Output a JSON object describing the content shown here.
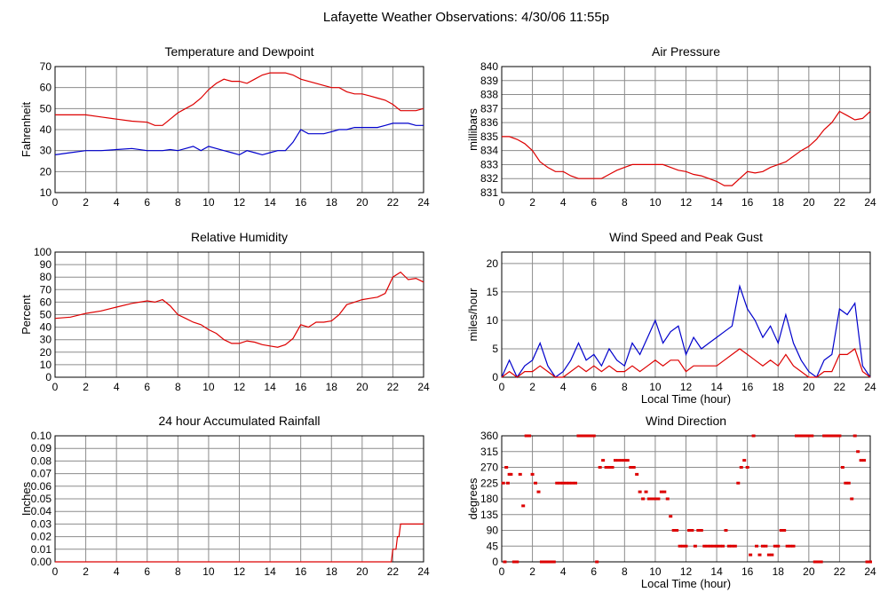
{
  "page": {
    "title": "Lafayette Weather Observations: 4/30/06 11:55p"
  },
  "colors": {
    "red": "#dd0000",
    "blue": "#0000cc",
    "grid": "#8c8c8c",
    "frame": "#000000"
  },
  "chart_data": [
    {
      "id": "temp",
      "type": "line",
      "title": "Temperature and Dewpoint",
      "ylabel": "Fahrenheit",
      "xlabel": "",
      "xlim": [
        0,
        24
      ],
      "ylim": [
        10,
        70
      ],
      "xticks": [
        0,
        2,
        4,
        6,
        8,
        10,
        12,
        14,
        16,
        18,
        20,
        22,
        24
      ],
      "yticks": [
        10,
        20,
        30,
        40,
        50,
        60,
        70
      ],
      "series": [
        {
          "color": "red",
          "x": [
            0,
            1,
            2,
            3,
            4,
            5,
            6,
            6.5,
            7,
            7.5,
            8,
            8.5,
            9,
            9.5,
            10,
            10.5,
            11,
            11.5,
            12,
            12.5,
            13,
            13.5,
            14,
            14.5,
            15,
            15.5,
            16,
            16.5,
            17,
            17.5,
            18,
            18.5,
            19,
            19.5,
            20,
            20.5,
            21,
            21.5,
            22,
            22.5,
            23,
            23.5,
            24
          ],
          "y": [
            47,
            47,
            47,
            46,
            45,
            44,
            43.5,
            42,
            42,
            45,
            48,
            50,
            52,
            55,
            59,
            62,
            64,
            63,
            63,
            62,
            64,
            66,
            67,
            67,
            67,
            66,
            64,
            63,
            62,
            61,
            60,
            60,
            58,
            57,
            57,
            56,
            55,
            54,
            52,
            49,
            49,
            49,
            50
          ]
        },
        {
          "color": "blue",
          "x": [
            0,
            1,
            2,
            3,
            4,
            5,
            6,
            6.5,
            7,
            7.5,
            8,
            8.5,
            9,
            9.5,
            10,
            10.5,
            11,
            11.5,
            12,
            12.5,
            13,
            13.5,
            14,
            14.5,
            15,
            15.5,
            16,
            16.5,
            17,
            17.5,
            18,
            18.5,
            19,
            19.5,
            20,
            20.5,
            21,
            21.5,
            22,
            22.5,
            23,
            23.5,
            24
          ],
          "y": [
            28,
            29,
            30,
            30,
            30.5,
            31,
            30,
            30,
            30,
            30.5,
            30,
            31,
            32,
            30,
            32,
            31,
            30,
            29,
            28,
            30,
            29,
            28,
            29,
            30,
            30,
            34,
            40,
            38,
            38,
            38,
            39,
            40,
            40,
            41,
            41,
            41,
            41,
            42,
            43,
            43,
            43,
            42,
            42
          ]
        }
      ]
    },
    {
      "id": "pressure",
      "type": "line",
      "title": "Air Pressure",
      "ylabel": "millibars",
      "xlabel": "",
      "xlim": [
        0,
        24
      ],
      "ylim": [
        831,
        840
      ],
      "xticks": [
        0,
        2,
        4,
        6,
        8,
        10,
        12,
        14,
        16,
        18,
        20,
        22,
        24
      ],
      "yticks": [
        831,
        832,
        833,
        834,
        835,
        836,
        837,
        838,
        839,
        840
      ],
      "series": [
        {
          "color": "red",
          "x": [
            0,
            0.5,
            1,
            1.5,
            2,
            2.5,
            3,
            3.5,
            4,
            4.5,
            5,
            5.5,
            6,
            6.5,
            7,
            7.5,
            8,
            8.5,
            9,
            9.5,
            10,
            10.5,
            11,
            11.5,
            12,
            12.5,
            13,
            13.5,
            14,
            14.5,
            15,
            15.5,
            16,
            16.5,
            17,
            17.5,
            18,
            18.5,
            19,
            19.5,
            20,
            20.5,
            21,
            21.5,
            22,
            22.5,
            23,
            23.5,
            24
          ],
          "y": [
            835,
            835,
            834.8,
            834.5,
            834,
            833.2,
            832.8,
            832.5,
            832.5,
            832.2,
            832,
            832,
            832,
            832,
            832.3,
            832.6,
            832.8,
            833,
            833,
            833,
            833,
            833,
            832.8,
            832.6,
            832.5,
            832.3,
            832.2,
            832,
            831.8,
            831.5,
            831.5,
            832,
            832.5,
            832.4,
            832.5,
            832.8,
            833,
            833.2,
            833.6,
            834,
            834.3,
            834.8,
            835.5,
            836,
            836.8,
            836.5,
            836.2,
            836.3,
            836.8
          ]
        }
      ]
    },
    {
      "id": "humidity",
      "type": "line",
      "title": "Relative Humidity",
      "ylabel": "Percent",
      "xlabel": "",
      "xlim": [
        0,
        24
      ],
      "ylim": [
        0,
        100
      ],
      "xticks": [
        0,
        2,
        4,
        6,
        8,
        10,
        12,
        14,
        16,
        18,
        20,
        22,
        24
      ],
      "yticks": [
        0,
        10,
        20,
        30,
        40,
        50,
        60,
        70,
        80,
        90,
        100
      ],
      "series": [
        {
          "color": "red",
          "x": [
            0,
            1,
            2,
            3,
            4,
            5,
            6,
            6.5,
            7,
            7.5,
            8,
            8.5,
            9,
            9.5,
            10,
            10.5,
            11,
            11.5,
            12,
            12.5,
            13,
            13.5,
            14,
            14.5,
            15,
            15.5,
            16,
            16.5,
            17,
            17.5,
            18,
            18.5,
            19,
            19.5,
            20,
            20.5,
            21,
            21.5,
            22,
            22.5,
            23,
            23.5,
            24
          ],
          "y": [
            47,
            48,
            51,
            53,
            56,
            59,
            61,
            60,
            62,
            57,
            50,
            47,
            44,
            42,
            38,
            35,
            30,
            27,
            27,
            29,
            28,
            26,
            25,
            24,
            26,
            31,
            42,
            40,
            44,
            44,
            45,
            50,
            58,
            60,
            62,
            63,
            64,
            67,
            80,
            84,
            78,
            79,
            76
          ]
        }
      ]
    },
    {
      "id": "wind",
      "type": "line",
      "title": "Wind Speed and Peak Gust",
      "ylabel": "miles/hour",
      "xlabel": "Local Time (hour)",
      "xlim": [
        0,
        24
      ],
      "ylim": [
        0,
        22
      ],
      "xticks": [
        0,
        2,
        4,
        6,
        8,
        10,
        12,
        14,
        16,
        18,
        20,
        22,
        24
      ],
      "yticks": [
        0,
        5,
        10,
        15,
        20
      ],
      "series": [
        {
          "color": "blue",
          "x": [
            0,
            0.5,
            1,
            1.5,
            2,
            2.5,
            3,
            3.5,
            4,
            4.5,
            5,
            5.5,
            6,
            6.5,
            7,
            7.5,
            8,
            8.5,
            9,
            9.5,
            10,
            10.5,
            11,
            11.5,
            12,
            12.5,
            13,
            13.5,
            14,
            14.5,
            15,
            15.5,
            16,
            16.5,
            17,
            17.5,
            18,
            18.5,
            19,
            19.5,
            20,
            20.5,
            21,
            21.5,
            22,
            22.5,
            23,
            23.5,
            24
          ],
          "y": [
            0,
            3,
            0,
            2,
            3,
            6,
            2,
            0,
            1,
            3,
            6,
            3,
            4,
            2,
            5,
            3,
            2,
            6,
            4,
            7,
            10,
            6,
            8,
            9,
            4,
            7,
            5,
            6,
            7,
            8,
            9,
            16,
            12,
            10,
            7,
            9,
            6,
            11,
            6,
            3,
            1,
            0,
            3,
            4,
            12,
            11,
            13,
            2,
            0
          ]
        },
        {
          "color": "red",
          "x": [
            0,
            0.5,
            1,
            1.5,
            2,
            2.5,
            3,
            3.5,
            4,
            4.5,
            5,
            5.5,
            6,
            6.5,
            7,
            7.5,
            8,
            8.5,
            9,
            9.5,
            10,
            10.5,
            11,
            11.5,
            12,
            12.5,
            13,
            13.5,
            14,
            14.5,
            15,
            15.5,
            16,
            16.5,
            17,
            17.5,
            18,
            18.5,
            19,
            19.5,
            20,
            20.5,
            21,
            21.5,
            22,
            22.5,
            23,
            23.5,
            24
          ],
          "y": [
            0,
            1,
            0,
            1,
            1,
            2,
            1,
            0,
            0,
            1,
            2,
            1,
            2,
            1,
            2,
            1,
            1,
            2,
            1,
            2,
            3,
            2,
            3,
            3,
            1,
            2,
            2,
            2,
            2,
            3,
            4,
            5,
            4,
            3,
            2,
            3,
            2,
            4,
            2,
            1,
            0,
            0,
            1,
            1,
            4,
            4,
            5,
            1,
            0
          ]
        }
      ]
    },
    {
      "id": "rain",
      "type": "line",
      "title": "24 hour Accumulated Rainfall",
      "ylabel": "Inches",
      "xlabel": "",
      "xlim": [
        0,
        24
      ],
      "ylim": [
        0,
        0.1
      ],
      "xticks": [
        0,
        2,
        4,
        6,
        8,
        10,
        12,
        14,
        16,
        18,
        20,
        22,
        24
      ],
      "yticks": [
        "0.00",
        "0.01",
        "0.02",
        "0.03",
        "0.04",
        "0.05",
        "0.06",
        "0.07",
        "0.08",
        "0.09",
        "0.10"
      ],
      "series": [
        {
          "color": "red",
          "x": [
            0,
            21.9,
            22,
            22.2,
            22.3,
            22.4,
            22.5,
            24
          ],
          "y": [
            0,
            0,
            0.01,
            0.01,
            0.02,
            0.02,
            0.03,
            0.03
          ]
        }
      ]
    },
    {
      "id": "direction",
      "type": "scatter",
      "title": "Wind Direction",
      "ylabel": "degrees",
      "xlabel": "Local Time (hour)",
      "xlim": [
        0,
        24
      ],
      "ylim": [
        0,
        360
      ],
      "xticks": [
        0,
        2,
        4,
        6,
        8,
        10,
        12,
        14,
        16,
        18,
        20,
        22,
        24
      ],
      "yticks": [
        0,
        45,
        90,
        135,
        180,
        225,
        270,
        315,
        360
      ],
      "series": [
        {
          "color": "red",
          "x": [
            0.1,
            0.2,
            0.3,
            0.4,
            0.5,
            0.6,
            0.8,
            1.0,
            1.2,
            1.4,
            1.6,
            1.8,
            2.0,
            2.2,
            2.4,
            2.6,
            2.8,
            3.0,
            3.2,
            3.4,
            3.6,
            3.8,
            4.0,
            4.2,
            4.4,
            4.6,
            4.8,
            5.0,
            5.2,
            5.4,
            5.6,
            5.8,
            6.0,
            6.2,
            6.4,
            6.6,
            6.8,
            7.0,
            7.2,
            7.4,
            7.6,
            7.8,
            8.0,
            8.2,
            8.4,
            8.6,
            8.8,
            9.0,
            9.2,
            9.4,
            9.6,
            9.8,
            10.0,
            10.2,
            10.4,
            10.6,
            10.8,
            11.0,
            11.2,
            11.4,
            11.6,
            11.8,
            12.0,
            12.2,
            12.4,
            12.6,
            12.8,
            13.0,
            13.2,
            13.4,
            13.6,
            13.8,
            14.0,
            14.2,
            14.4,
            14.6,
            14.8,
            15.0,
            15.2,
            15.4,
            15.6,
            15.8,
            16.0,
            16.2,
            16.4,
            16.6,
            16.8,
            17.0,
            17.2,
            17.4,
            17.6,
            17.8,
            18.0,
            18.2,
            18.4,
            18.6,
            18.8,
            19.0,
            19.2,
            19.4,
            19.6,
            19.8,
            20.0,
            20.2,
            20.4,
            20.6,
            20.8,
            21.0,
            21.2,
            21.4,
            21.6,
            21.8,
            22.0,
            22.2,
            22.4,
            22.6,
            22.8,
            23.0,
            23.2,
            23.4,
            23.6,
            23.8,
            24.0
          ],
          "y": [
            225,
            0,
            270,
            225,
            250,
            250,
            0,
            0,
            250,
            160,
            360,
            360,
            250,
            225,
            200,
            0,
            0,
            0,
            0,
            0,
            225,
            225,
            225,
            225,
            225,
            225,
            225,
            360,
            360,
            360,
            360,
            360,
            360,
            0,
            270,
            290,
            270,
            270,
            270,
            290,
            290,
            290,
            290,
            290,
            270,
            270,
            250,
            200,
            180,
            200,
            180,
            180,
            180,
            180,
            200,
            200,
            180,
            130,
            90,
            90,
            45,
            45,
            45,
            90,
            90,
            45,
            90,
            90,
            45,
            45,
            45,
            45,
            45,
            45,
            45,
            90,
            45,
            45,
            45,
            225,
            270,
            290,
            270,
            20,
            360,
            45,
            20,
            45,
            45,
            20,
            20,
            45,
            45,
            90,
            90,
            45,
            45,
            45,
            360,
            360,
            360,
            360,
            360,
            360,
            0,
            0,
            0,
            360,
            360,
            360,
            360,
            360,
            360,
            270,
            225,
            225,
            180,
            360,
            315,
            290,
            290,
            0,
            0
          ]
        }
      ]
    }
  ]
}
